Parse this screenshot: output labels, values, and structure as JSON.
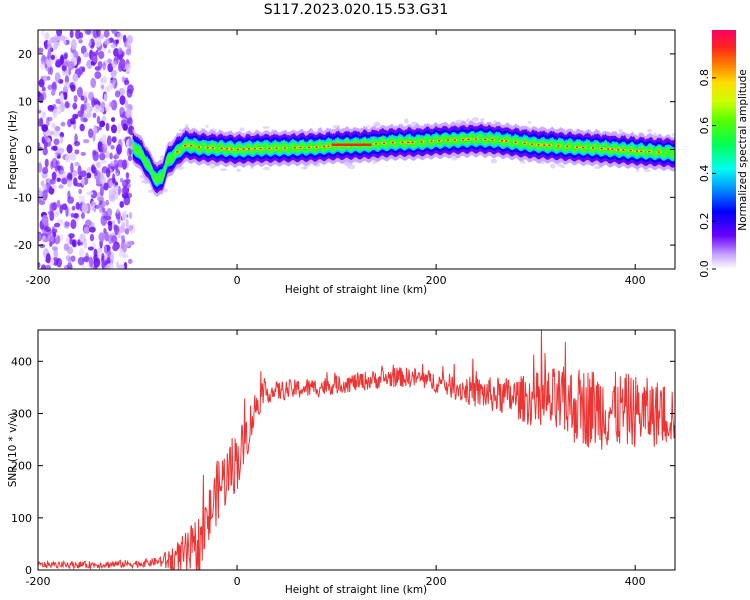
{
  "figure": {
    "title": "S117.2023.020.15.53.G31"
  },
  "chart_data": [
    {
      "type": "heatmap",
      "title": "",
      "xlabel": "Height of straight line (km)",
      "ylabel": "Frequency (Hz)",
      "xlim": [
        -200,
        440
      ],
      "ylim": [
        -25,
        25
      ],
      "x_ticks": [
        "-200",
        "0",
        "200",
        "400"
      ],
      "y_ticks": [
        "-20",
        "-10",
        "0",
        "10",
        "20"
      ],
      "colorbar": {
        "label": "Normalized spectral amplitude",
        "range": [
          0.0,
          1.0
        ],
        "ticks": [
          "0.0",
          "0.2",
          "0.4",
          "0.6",
          "0.8"
        ],
        "colormap": "rainbow (white-violet-blue-cyan-green-yellow-red-magenta)"
      },
      "frequency_track": {
        "x": [
          -105,
          -100,
          -95,
          -90,
          -85,
          -80,
          -75,
          -70,
          -65,
          -60,
          -55,
          -50,
          -40,
          -20,
          0,
          20,
          50,
          80,
          100,
          130,
          140,
          160,
          180,
          200,
          220,
          240,
          260,
          280,
          300,
          320,
          340,
          360,
          380,
          400,
          420,
          440
        ],
        "y": [
          0.5,
          0,
          -1.5,
          -3,
          -5,
          -6.5,
          -5.5,
          -2.5,
          -1.5,
          -0.5,
          0.5,
          1,
          0.5,
          0.3,
          0,
          0.2,
          0.3,
          0.5,
          0.8,
          1,
          1.2,
          1.5,
          1.5,
          1.8,
          2,
          2.2,
          2,
          1.5,
          1,
          0.8,
          0.5,
          0.3,
          0,
          -0.3,
          -0.5,
          -0.8
        ]
      },
      "noise_region_x": [
        -200,
        -105
      ]
    },
    {
      "type": "line",
      "title": "",
      "xlabel": "Height of straight line (km)",
      "ylabel": "SNR (10 * v/v)",
      "xlim": [
        -200,
        440
      ],
      "ylim": [
        0,
        460
      ],
      "x_ticks": [
        "-200",
        "0",
        "200",
        "400"
      ],
      "y_ticks": [
        "0",
        "100",
        "200",
        "300",
        "400"
      ],
      "line_color": "#ee3333",
      "series_envelope": {
        "x": [
          -200,
          -150,
          -100,
          -70,
          -55,
          -45,
          -40,
          -35,
          -30,
          -25,
          -20,
          -15,
          -10,
          -5,
          0,
          5,
          10,
          15,
          20,
          25,
          30,
          50,
          80,
          100,
          120,
          140,
          160,
          180,
          200,
          220,
          240,
          260,
          280,
          300,
          320,
          340,
          360,
          380,
          400,
          420,
          440
        ],
        "y": [
          10,
          10,
          12,
          18,
          25,
          35,
          45,
          60,
          90,
          120,
          150,
          170,
          180,
          200,
          210,
          230,
          260,
          290,
          320,
          335,
          340,
          345,
          350,
          355,
          360,
          365,
          370,
          368,
          360,
          350,
          340,
          335,
          330,
          325,
          320,
          315,
          310,
          305,
          305,
          300,
          300
        ]
      },
      "noise_amplitude": {
        "x": [
          -200,
          -80,
          -40,
          0,
          30,
          100,
          200,
          280,
          320,
          360,
          400,
          440
        ],
        "y": [
          6,
          8,
          60,
          60,
          20,
          18,
          20,
          40,
          70,
          80,
          70,
          60
        ]
      }
    }
  ]
}
